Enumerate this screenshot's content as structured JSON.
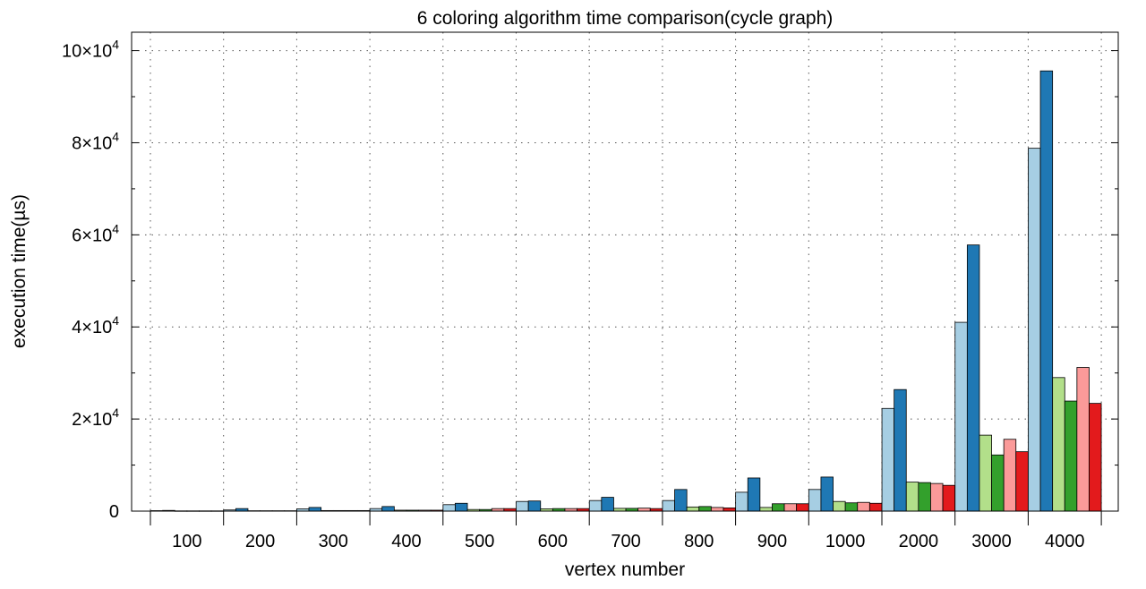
{
  "chart_data": {
    "type": "bar",
    "title": "6 coloring algorithm time comparison(cycle graph)",
    "xlabel": "vertex number",
    "ylabel": "execution time(µs)",
    "categories": [
      "100",
      "200",
      "300",
      "400",
      "500",
      "600",
      "700",
      "800",
      "900",
      "1000",
      "2000",
      "3000",
      "4000"
    ],
    "ylim": [
      0,
      104000
    ],
    "yticks": [
      {
        "value": 0,
        "mantissa": "0",
        "exp": ""
      },
      {
        "value": 20000,
        "mantissa": "2×10",
        "exp": "4"
      },
      {
        "value": 40000,
        "mantissa": "4×10",
        "exp": "4"
      },
      {
        "value": 60000,
        "mantissa": "6×10",
        "exp": "4"
      },
      {
        "value": 80000,
        "mantissa": "8×10",
        "exp": "4"
      },
      {
        "value": 100000,
        "mantissa": "10×10",
        "exp": "4"
      }
    ],
    "grid": true,
    "legend": "none",
    "colors": [
      "#a6cee3",
      "#1f78b4",
      "#b2df8a",
      "#33a02c",
      "#fb9a99",
      "#e31a1c"
    ],
    "series": [
      {
        "values": [
          100,
          250,
          500,
          550,
          1400,
          2100,
          2300,
          2300,
          4100,
          4700,
          22300,
          41000,
          78800
        ]
      },
      {
        "values": [
          150,
          550,
          800,
          1000,
          1700,
          2200,
          3000,
          4700,
          7200,
          7400,
          26400,
          57800,
          95600
        ]
      },
      {
        "values": [
          50,
          80,
          120,
          200,
          350,
          500,
          600,
          900,
          800,
          2100,
          6300,
          16500,
          29000
        ]
      },
      {
        "values": [
          50,
          80,
          120,
          200,
          350,
          550,
          600,
          1000,
          1600,
          1800,
          6200,
          12200,
          23900
        ]
      },
      {
        "values": [
          50,
          80,
          120,
          200,
          550,
          550,
          650,
          800,
          1600,
          1900,
          6000,
          15600,
          31200
        ]
      },
      {
        "values": [
          50,
          80,
          120,
          200,
          550,
          550,
          550,
          700,
          1600,
          1700,
          5600,
          12900,
          23400
        ]
      }
    ]
  }
}
